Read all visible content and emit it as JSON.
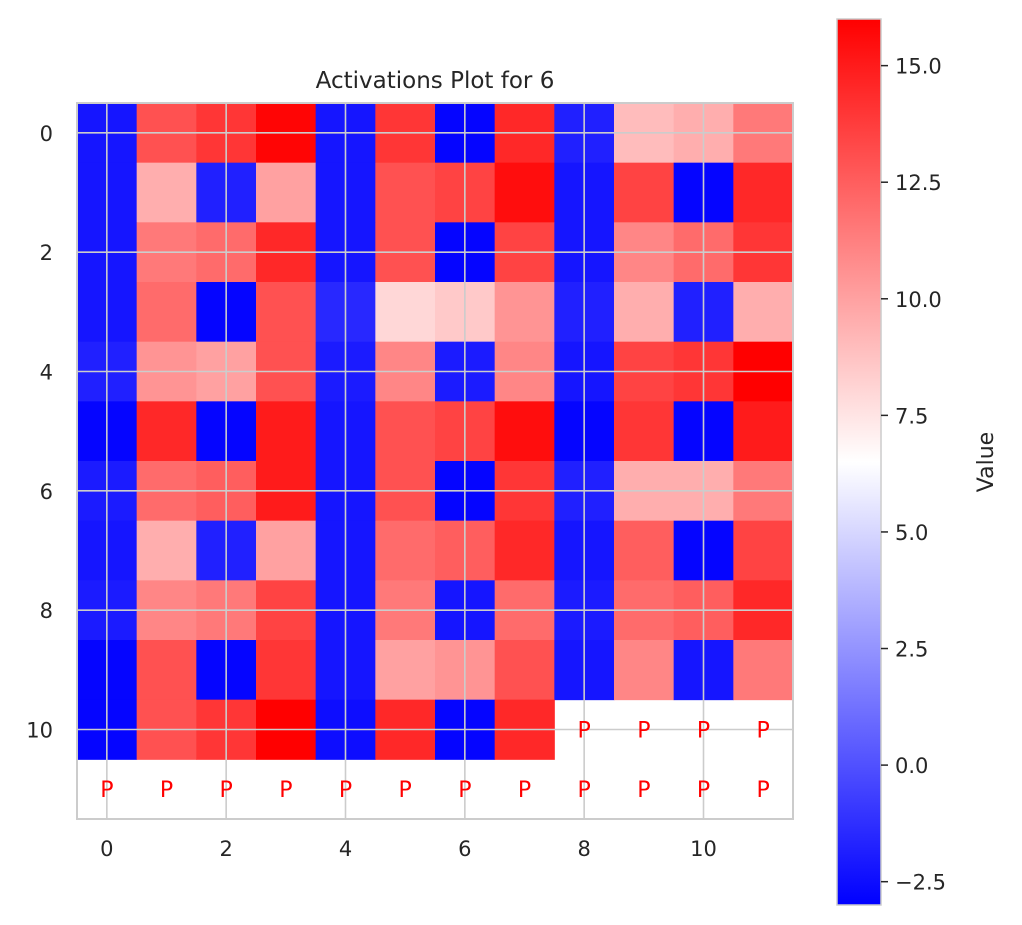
{
  "chart_data": {
    "type": "heatmap",
    "title": "Activations Plot for 6",
    "xlabel": "",
    "ylabel": "",
    "rows": 12,
    "cols": 12,
    "x_ticks": [
      0,
      2,
      4,
      6,
      8,
      10
    ],
    "y_ticks": [
      0,
      2,
      4,
      6,
      8,
      10
    ],
    "colormap": [
      "#0000ff",
      "#ffffff",
      "#ff0000"
    ],
    "vmin": -3.0,
    "vmax": 16.0,
    "grid": true,
    "values": [
      [
        -2.2,
        13.0,
        14.0,
        15.8,
        -2.2,
        14.0,
        -2.8,
        14.5,
        -1.8,
        9.0,
        9.5,
        11.5
      ],
      [
        -2.2,
        9.5,
        -1.8,
        10.0,
        -2.2,
        13.0,
        13.5,
        15.5,
        -2.2,
        13.5,
        -2.8,
        14.5
      ],
      [
        -2.2,
        11.5,
        12.0,
        14.5,
        -2.2,
        13.0,
        -2.8,
        13.5,
        -2.2,
        11.0,
        12.0,
        14.0
      ],
      [
        -2.2,
        12.0,
        -2.8,
        13.0,
        -1.5,
        8.0,
        8.5,
        10.5,
        -1.8,
        9.5,
        -1.8,
        9.5
      ],
      [
        -1.8,
        10.5,
        10.0,
        13.0,
        -2.0,
        11.0,
        -2.0,
        11.0,
        -2.2,
        13.5,
        14.0,
        16.0
      ],
      [
        -2.8,
        14.5,
        -2.8,
        15.0,
        -2.2,
        13.0,
        13.5,
        15.5,
        -2.8,
        14.0,
        -2.8,
        15.0
      ],
      [
        -2.0,
        12.0,
        12.5,
        15.0,
        -2.2,
        13.0,
        -2.8,
        14.0,
        -1.8,
        9.5,
        9.5,
        11.5
      ],
      [
        -2.2,
        9.5,
        -1.8,
        10.0,
        -2.2,
        12.0,
        12.5,
        14.5,
        -2.2,
        12.5,
        -2.8,
        13.5
      ],
      [
        -2.0,
        11.0,
        11.5,
        13.5,
        -2.2,
        11.5,
        -2.2,
        12.0,
        -2.0,
        12.0,
        12.5,
        14.5
      ],
      [
        -2.8,
        13.0,
        -2.8,
        14.0,
        -2.2,
        10.0,
        10.5,
        13.0,
        -2.2,
        11.0,
        -2.2,
        11.5
      ],
      [
        -2.8,
        13.0,
        14.0,
        16.0,
        -2.5,
        14.5,
        -2.8,
        14.5,
        null,
        null,
        null,
        null
      ],
      [
        null,
        null,
        null,
        null,
        null,
        null,
        null,
        null,
        null,
        null,
        null,
        null
      ]
    ],
    "padding_label": "P",
    "padding_color": "#ff0000",
    "colorbar": {
      "label": "Value",
      "ticks": [
        -2.5,
        0.0,
        2.5,
        5.0,
        7.5,
        10.0,
        12.5,
        15.0
      ],
      "tick_labels": [
        "−2.5",
        "0.0",
        "2.5",
        "5.0",
        "7.5",
        "10.0",
        "12.5",
        "15.0"
      ]
    }
  }
}
